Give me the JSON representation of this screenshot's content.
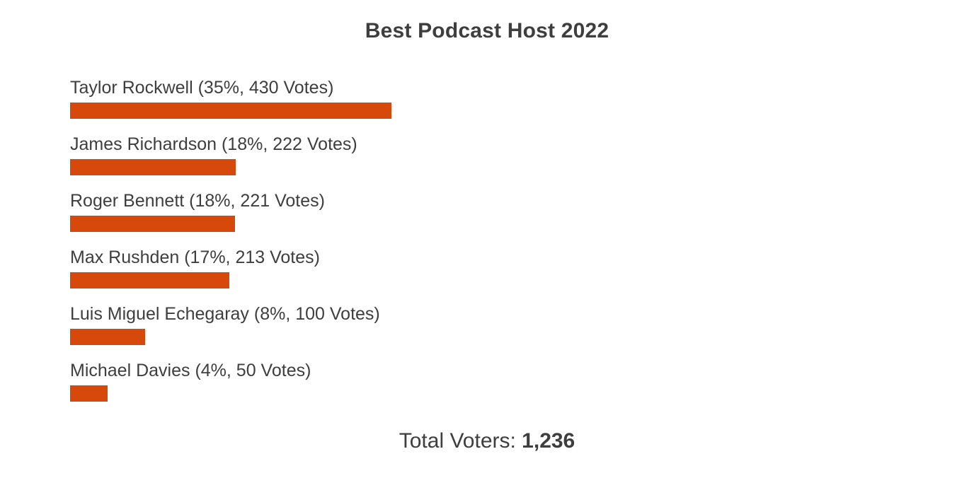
{
  "title": "Best Podcast Host 2022",
  "footer": {
    "total_label": "Total Voters: ",
    "total_value": "1,236"
  },
  "colors": {
    "bar": "#d6490b",
    "text": "#3e3e3e"
  },
  "chart_data": {
    "type": "bar",
    "orientation": "horizontal",
    "title": "Best Podcast Host 2022",
    "categories": [
      "Taylor Rockwell",
      "James Richardson",
      "Roger Bennett",
      "Max Rushden",
      "Luis Miguel Echegaray",
      "Michael Davies"
    ],
    "series": [
      {
        "name": "Votes",
        "values": [
          430,
          222,
          221,
          213,
          100,
          50
        ]
      }
    ],
    "percentages": [
      35,
      18,
      18,
      17,
      8,
      4
    ],
    "total_voters": 1236,
    "legend": false,
    "grid": false,
    "rows": [
      {
        "label": "Taylor Rockwell (35%, 430 Votes)",
        "name": "Taylor Rockwell",
        "percent": 35,
        "votes": 430
      },
      {
        "label": "James Richardson (18%, 222 Votes)",
        "name": "James Richardson",
        "percent": 18,
        "votes": 222
      },
      {
        "label": "Roger Bennett (18%, 221 Votes)",
        "name": "Roger Bennett",
        "percent": 18,
        "votes": 221
      },
      {
        "label": "Max Rushden (17%, 213 Votes)",
        "name": "Max Rushden",
        "percent": 17,
        "votes": 213
      },
      {
        "label": "Luis Miguel Echegaray (8%, 100 Votes)",
        "name": "Luis Miguel Echegaray",
        "percent": 8,
        "votes": 100
      },
      {
        "label": "Michael Davies (4%, 50 Votes)",
        "name": "Michael Davies",
        "percent": 4,
        "votes": 50
      }
    ]
  }
}
